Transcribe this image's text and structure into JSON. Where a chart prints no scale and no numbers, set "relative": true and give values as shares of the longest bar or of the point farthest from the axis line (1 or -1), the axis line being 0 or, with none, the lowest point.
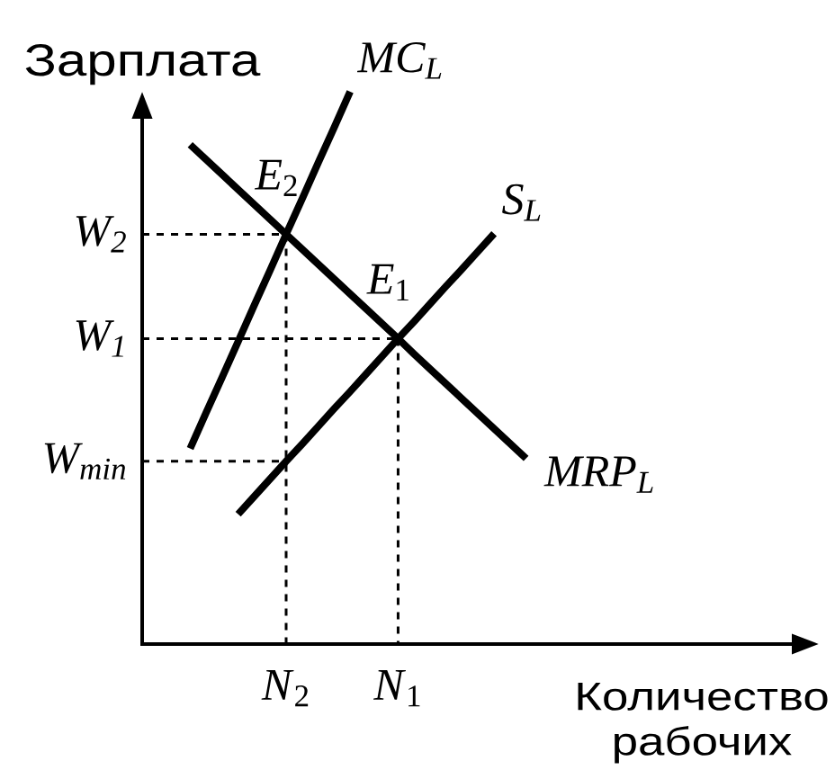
{
  "chart_data": {
    "type": "line",
    "relative": true,
    "ylabel": "Зарплата",
    "xlabel": "Количество рабочих",
    "categories": [
      null,
      null,
      null,
      null,
      null,
      null,
      null,
      null,
      null,
      "*N*$_{2}$",
      null,
      null,
      null,
      null,
      null,
      null,
      "*N*$_{1}$",
      null,
      null,
      null,
      null,
      null,
      null,
      null,
      null
    ],
    "series": [
      {
        "name": "MC$_{L}$",
        "color": "#000000",
        "values": [
          null,
          null,
          null,
          0.354,
          0.419,
          0.483,
          0.548,
          0.613,
          0.677,
          0.742,
          0.806,
          0.871,
          0.935,
          1.0,
          null,
          null,
          null,
          null,
          null,
          null,
          null,
          null,
          null,
          null,
          null
        ]
      },
      {
        "name": "S$_{L}$",
        "color": "#000000",
        "values": [
          null,
          null,
          null,
          null,
          null,
          null,
          0.235,
          0.267,
          0.299,
          0.331,
          0.362,
          0.394,
          0.426,
          0.457,
          0.489,
          0.521,
          0.553,
          0.584,
          0.616,
          0.648,
          0.679,
          0.711,
          0.743,
          null,
          null
        ]
      },
      {
        "name": "MRP$_{L}$",
        "color": "#000000",
        "values": [
          null,
          null,
          null,
          0.904,
          0.877,
          0.85,
          0.823,
          0.796,
          0.769,
          0.742,
          0.715,
          0.688,
          0.661,
          0.634,
          0.607,
          0.58,
          0.553,
          0.525,
          0.498,
          0.471,
          0.444,
          0.417,
          0.39,
          0.363,
          0.336
        ]
      },
      {
        "name": "W$_{2}$",
        "color": "#000000",
        "line_style": "dashed",
        "values": [
          0.742,
          0.742,
          0.742,
          0.742,
          0.742,
          0.742,
          0.742,
          0.742,
          0.742,
          0.742,
          null,
          null,
          null,
          null,
          null,
          null,
          null,
          null,
          null,
          null,
          null,
          null,
          null,
          null,
          null
        ]
      },
      {
        "name": "W$_{1}$",
        "color": "#000000",
        "line_style": "dashed",
        "values": [
          0.553,
          0.553,
          0.553,
          0.553,
          0.553,
          0.553,
          0.553,
          0.553,
          0.553,
          0.553,
          0.553,
          0.553,
          0.553,
          0.553,
          0.553,
          0.553,
          0.553,
          null,
          null,
          null,
          null,
          null,
          null,
          null,
          null
        ]
      },
      {
        "name": "W$_{min}$",
        "color": "#000000",
        "line_style": "dashed",
        "values": [
          0.331,
          0.331,
          0.331,
          0.331,
          0.331,
          0.331,
          0.331,
          0.331,
          0.331,
          0.331,
          null,
          null,
          null,
          null,
          null,
          null,
          null,
          null,
          null,
          null,
          null,
          null,
          null,
          null,
          null
        ]
      },
      {
        "color": "#000000",
        "line_style": "dashed",
        "x": [
          "*N*$_{2}$",
          "*N*$_{2}$"
        ],
        "values": [
          0.742,
          0
        ]
      },
      {
        "color": "#000000",
        "line_style": "dashed",
        "x": [
          "*N*$_{1}$",
          "*N*$_{1}$"
        ],
        "values": [
          0.553,
          0
        ]
      }
    ],
    "annotations": [
      {
        "text": "*E*$_{2}$",
        "x": "*N*$_{2}$",
        "y": 0.742
      },
      {
        "text": "*E*$_{1}$",
        "x": "*N*$_{1}$",
        "y": 0.553
      }
    ]
  }
}
